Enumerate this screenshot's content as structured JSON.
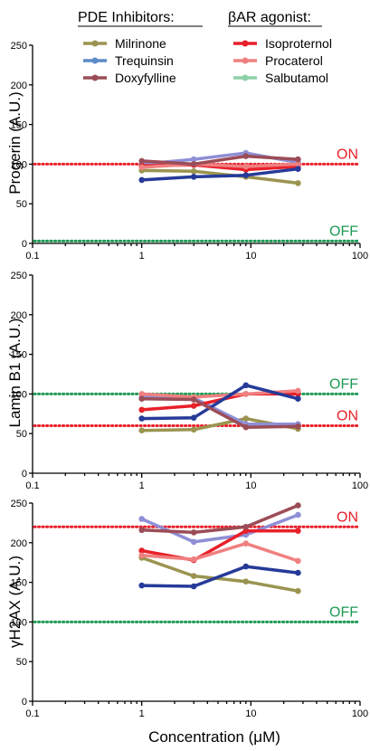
{
  "legend": {
    "group_titles": [
      "PDE Inhibitors:",
      "βAR agonist:"
    ],
    "entries": [
      {
        "label": "Milrinone",
        "color": "#9a9450"
      },
      {
        "label": "Trequinsin",
        "color": "#5b8cc6"
      },
      {
        "label": "Doxyfylline",
        "color": "#9b4d57"
      },
      {
        "label": "Isoproternol",
        "color": "#e8202a"
      },
      {
        "label": "Procaterol",
        "color": "#f08080"
      },
      {
        "label": "Salbutamol",
        "color": "#8ed1a8"
      }
    ]
  },
  "chart_data": [
    {
      "type": "line",
      "ylabel": "Progerin (A.U.)",
      "xlabel": "",
      "xscale": "log",
      "xlim": [
        0.1,
        100
      ],
      "ylim": [
        0,
        250
      ],
      "xticks": [
        "0.1",
        "1",
        "10",
        "100"
      ],
      "yticks": [
        "0",
        "50",
        "100",
        "150",
        "200",
        "250"
      ],
      "reference_lines": [
        {
          "label": "ON",
          "y": 100,
          "color": "#e8202a"
        },
        {
          "label": "OFF",
          "y": 3,
          "color": "#1e9a55"
        }
      ],
      "x": [
        1,
        3,
        9,
        27
      ],
      "series": [
        {
          "color": "#9a9450",
          "values": [
            92,
            91,
            84,
            76
          ]
        },
        {
          "color": "#8f8fd6",
          "values": [
            100,
            106,
            114,
            102
          ]
        },
        {
          "color": "#e8202a",
          "values": [
            98,
            99,
            93,
            97
          ]
        },
        {
          "color": "#f08080",
          "values": [
            96,
            100,
            97,
            100
          ]
        },
        {
          "color": "#263a99",
          "values": [
            80,
            84,
            86,
            94
          ]
        },
        {
          "color": "#9b4d57",
          "values": [
            104,
            100,
            110,
            106
          ]
        }
      ]
    },
    {
      "type": "line",
      "ylabel": "Lamin B1 (A.U.)",
      "xlabel": "",
      "xscale": "log",
      "xlim": [
        0.1,
        100
      ],
      "ylim": [
        0,
        250
      ],
      "xticks": [
        "0.1",
        "1",
        "10",
        "100"
      ],
      "yticks": [
        "0",
        "50",
        "100",
        "150",
        "200",
        "250"
      ],
      "reference_lines": [
        {
          "label": "OFF",
          "y": 100,
          "color": "#1e9a55"
        },
        {
          "label": "ON",
          "y": 60,
          "color": "#e8202a"
        }
      ],
      "x": [
        1,
        3,
        9,
        27
      ],
      "series": [
        {
          "color": "#9a9450",
          "values": [
            54,
            55,
            69,
            56
          ]
        },
        {
          "color": "#8f8fd6",
          "values": [
            96,
            95,
            62,
            62
          ]
        },
        {
          "color": "#e8202a",
          "values": [
            80,
            85,
            100,
            100
          ]
        },
        {
          "color": "#f08080",
          "values": [
            100,
            96,
            100,
            104
          ]
        },
        {
          "color": "#263a99",
          "values": [
            69,
            70,
            111,
            94
          ]
        },
        {
          "color": "#9b4d57",
          "values": [
            94,
            93,
            58,
            59
          ]
        }
      ]
    },
    {
      "type": "line",
      "ylabel": "γH2AX (A.U.)",
      "xlabel": "Concentration (μM)",
      "xscale": "log",
      "xlim": [
        0.1,
        100
      ],
      "ylim": [
        0,
        250
      ],
      "xticks": [
        "0.1",
        "1",
        "10",
        "100"
      ],
      "yticks": [
        "0",
        "50",
        "100",
        "150",
        "200",
        "250"
      ],
      "reference_lines": [
        {
          "label": "ON",
          "y": 220,
          "color": "#e8202a"
        },
        {
          "label": "OFF",
          "y": 100,
          "color": "#1e9a55"
        }
      ],
      "x": [
        1,
        3,
        9,
        27
      ],
      "series": [
        {
          "color": "#9a9450",
          "values": [
            181,
            158,
            151,
            139
          ]
        },
        {
          "color": "#8f8fd6",
          "values": [
            230,
            201,
            210,
            235
          ]
        },
        {
          "color": "#e8202a",
          "values": [
            190,
            178,
            215,
            215
          ]
        },
        {
          "color": "#f08080",
          "values": [
            184,
            179,
            199,
            177
          ]
        },
        {
          "color": "#263a99",
          "values": [
            146,
            145,
            170,
            162
          ]
        },
        {
          "color": "#9b4d57",
          "values": [
            216,
            213,
            220,
            247
          ]
        }
      ]
    }
  ]
}
